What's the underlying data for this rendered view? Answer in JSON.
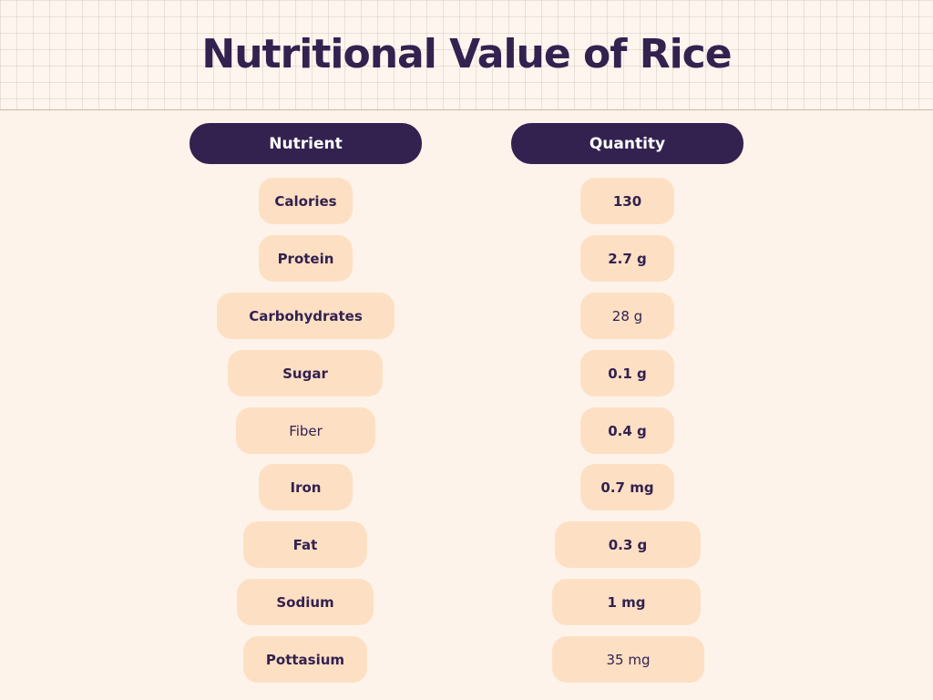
{
  "title": "Nutritional Value of Rice",
  "table": {
    "headers": {
      "nutrient": "Nutrient",
      "quantity": "Quantity"
    },
    "rows": [
      {
        "nutrient": "Calories",
        "quantity": "130"
      },
      {
        "nutrient": "Protein",
        "quantity": "2.7 g"
      },
      {
        "nutrient": "Carbohydrates",
        "quantity": "28 g"
      },
      {
        "nutrient": "Sugar",
        "quantity": "0.1 g"
      },
      {
        "nutrient": "Fiber",
        "quantity": "0.4 g"
      },
      {
        "nutrient": "Iron",
        "quantity": "0.7 mg"
      },
      {
        "nutrient": "Fat",
        "quantity": "0.3 g"
      },
      {
        "nutrient": "Sodium",
        "quantity": "1 mg"
      },
      {
        "nutrient": "Pottasium",
        "quantity": "35 mg"
      }
    ]
  },
  "colors": {
    "background": "#fdf3ea",
    "dark_purple": "#33214f",
    "pill_peach": "#fde0c4"
  }
}
